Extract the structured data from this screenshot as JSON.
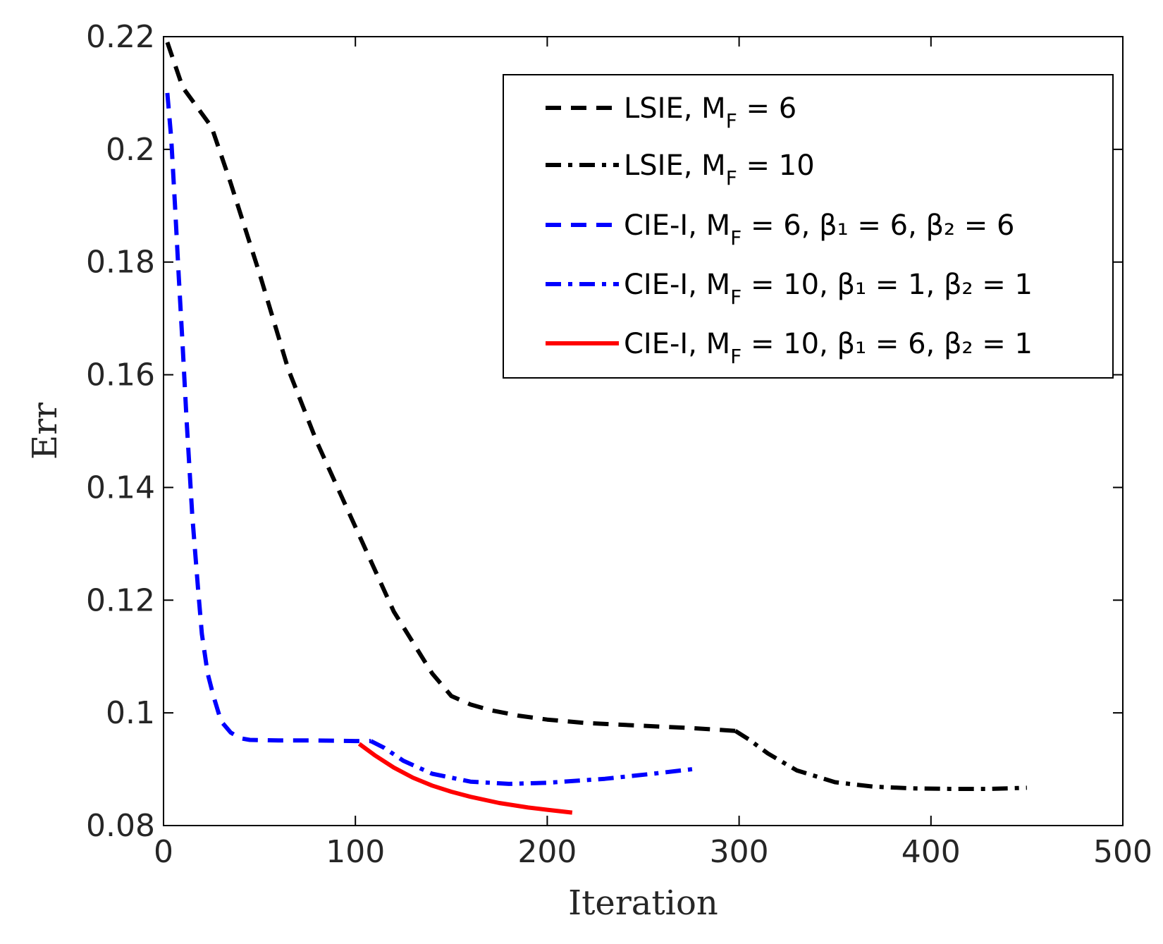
{
  "chart_data": {
    "type": "line",
    "title": "",
    "xlabel": "Iteration",
    "ylabel": "Err",
    "xlim": [
      0,
      500
    ],
    "ylim": [
      0.08,
      0.22
    ],
    "xticks": [
      "0",
      "100",
      "200",
      "300",
      "400",
      "500"
    ],
    "yticks": [
      "0.08",
      "0.1",
      "0.12",
      "0.14",
      "0.16",
      "0.18",
      "0.2",
      "0.22"
    ],
    "grid": false,
    "legend_position": "top-right",
    "series": [
      {
        "id": "lsie-6",
        "label_main": "LSIE, M",
        "label_sub": "F",
        "label_rest": " = 6",
        "color": "#000000",
        "style": "dashed",
        "x": [
          2,
          10,
          25,
          35,
          50,
          65,
          80,
          100,
          120,
          140,
          150,
          160,
          170,
          185,
          200,
          220,
          250,
          275,
          298
        ],
        "y": [
          0.219,
          0.211,
          0.204,
          0.194,
          0.178,
          0.161,
          0.148,
          0.133,
          0.118,
          0.107,
          0.103,
          0.1015,
          0.1005,
          0.0995,
          0.0988,
          0.0982,
          0.0977,
          0.0973,
          0.0968
        ]
      },
      {
        "id": "lsie-10",
        "label_main": "LSIE, M",
        "label_sub": "F",
        "label_rest": " = 10",
        "color": "#000000",
        "style": "dashdot",
        "x": [
          298,
          305,
          315,
          330,
          350,
          370,
          390,
          410,
          430,
          450
        ],
        "y": [
          0.0968,
          0.0953,
          0.0928,
          0.0898,
          0.0877,
          0.0869,
          0.0866,
          0.0865,
          0.0865,
          0.0867
        ]
      },
      {
        "id": "cie-6-6-6",
        "label_main": "CIE-I, M",
        "label_sub": "F",
        "label_rest": " = 6, β₁ = 6, β₂ = 6",
        "color": "#0000ff",
        "style": "dashed",
        "x": [
          2,
          4,
          6,
          8,
          10,
          12,
          15,
          18,
          20,
          23,
          26,
          30,
          35,
          40,
          45,
          60,
          80,
          100,
          108
        ],
        "y": [
          0.21,
          0.202,
          0.19,
          0.177,
          0.165,
          0.152,
          0.135,
          0.122,
          0.114,
          0.107,
          0.103,
          0.0985,
          0.0965,
          0.0955,
          0.0952,
          0.0951,
          0.0951,
          0.095,
          0.095
        ]
      },
      {
        "id": "cie-10-1-1",
        "label_main": "CIE-I, M",
        "label_sub": "F",
        "label_rest": " = 10, β₁ = 1, β₂ = 1",
        "color": "#0000ff",
        "style": "dashdot",
        "x": [
          108,
          115,
          125,
          140,
          160,
          180,
          200,
          230,
          255,
          278
        ],
        "y": [
          0.095,
          0.0938,
          0.0915,
          0.0892,
          0.0878,
          0.0874,
          0.0876,
          0.0883,
          0.0892,
          0.0901
        ]
      },
      {
        "id": "cie-10-6-1",
        "label_main": "CIE-I, M",
        "label_sub": "F",
        "label_rest": " = 10, β₁ = 6, β₂ = 1",
        "color": "#ff0000",
        "style": "solid",
        "x": [
          102,
          110,
          120,
          130,
          140,
          150,
          160,
          175,
          190,
          200,
          213
        ],
        "y": [
          0.0945,
          0.0925,
          0.0903,
          0.0885,
          0.0871,
          0.086,
          0.0851,
          0.084,
          0.0832,
          0.0828,
          0.0823
        ]
      }
    ]
  }
}
